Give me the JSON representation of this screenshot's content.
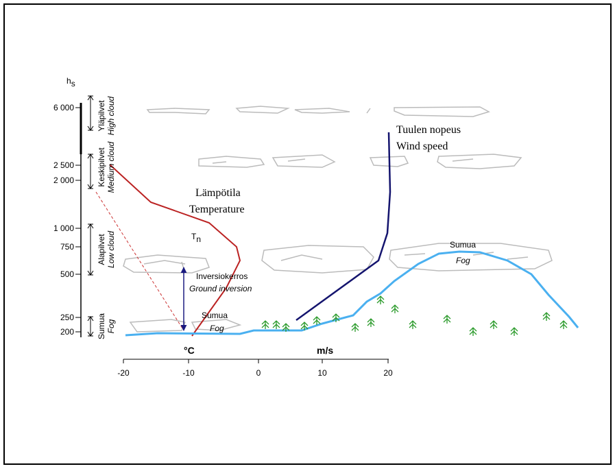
{
  "height_axis": {
    "label": "h",
    "subscript": "s",
    "ticks": [
      "6 000",
      "2 500",
      "2 000",
      "1 000",
      "750",
      "500",
      "250",
      "200"
    ]
  },
  "layers": [
    {
      "fi": "Yläpilvet",
      "en": "High cloud"
    },
    {
      "fi": "Keskipilvet",
      "en": "Medium cloud"
    },
    {
      "fi": "Alapilvet",
      "en": "Low cloud"
    },
    {
      "fi": "Sumua",
      "en": "Fog"
    }
  ],
  "labels": {
    "temperature": {
      "fi": "Lämpötila",
      "en": "Temperature"
    },
    "wind": {
      "fi": "Tuulen nopeus",
      "en": "Wind speed"
    },
    "inversion": {
      "fi": "Inversiokerros",
      "en": "Ground inversion"
    },
    "fog_low": {
      "fi": "Sumua",
      "en": "Fog"
    },
    "fog_high": {
      "fi": "Sumua",
      "en": "Fog"
    },
    "tn": {
      "main": "T",
      "sub": "n"
    }
  },
  "x_axis": {
    "unit_left": "°C",
    "unit_right": "m/s",
    "ticks": [
      "-20",
      "-10",
      "0",
      "10",
      "20"
    ]
  }
}
